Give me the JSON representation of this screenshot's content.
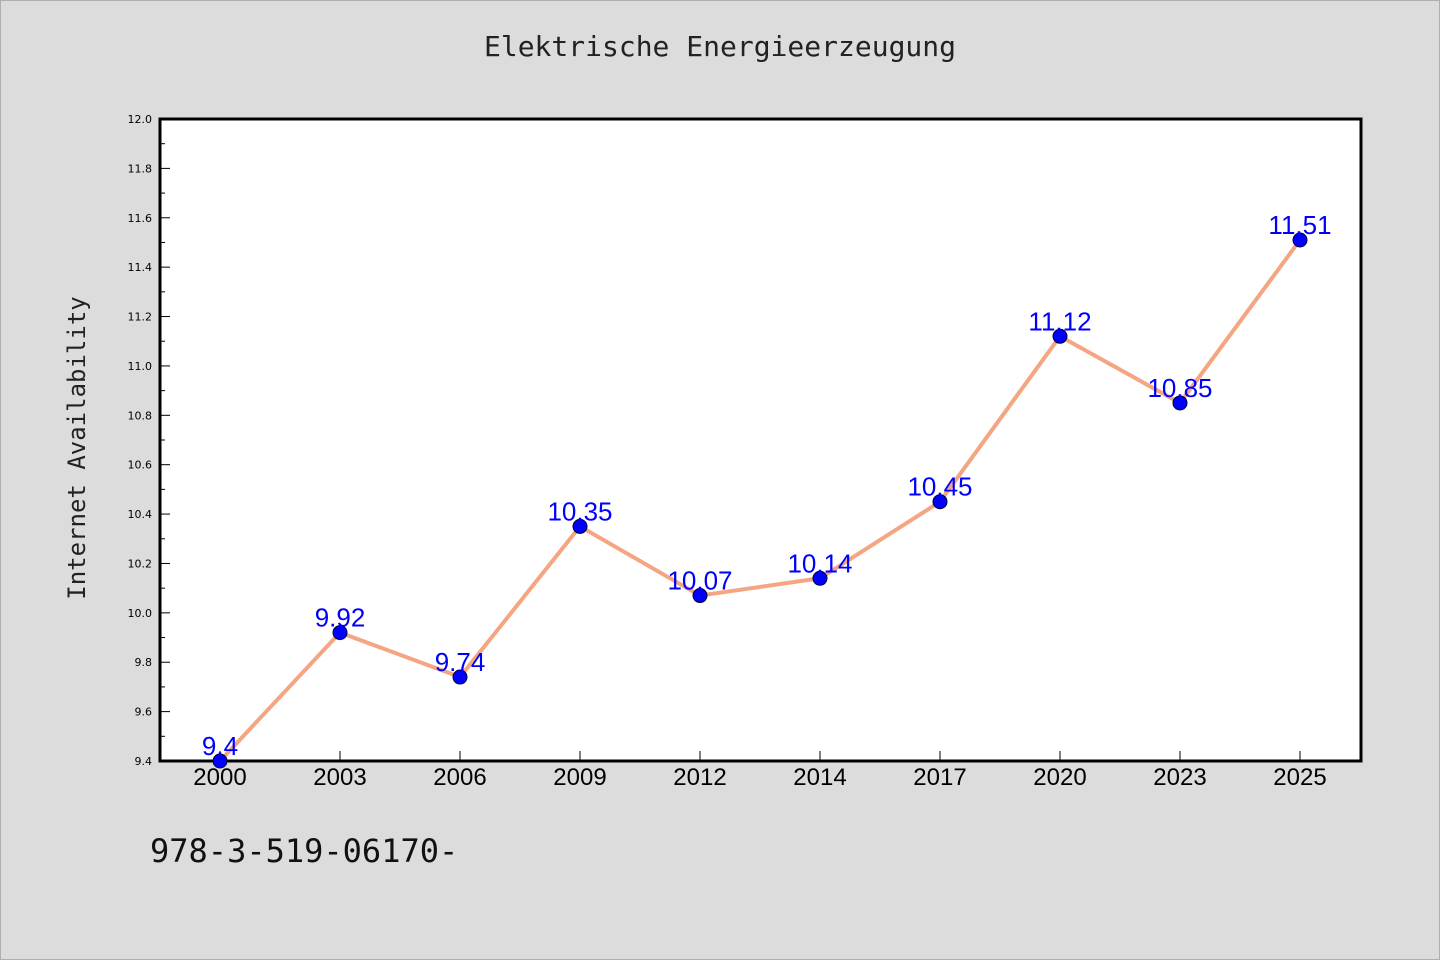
{
  "chart_data": {
    "type": "line",
    "title": "Elektrische Energieerzeugung",
    "xlabel": "",
    "ylabel": "Internet Availability",
    "categories": [
      "2000",
      "2003",
      "2006",
      "2009",
      "2012",
      "2014",
      "2017",
      "2020",
      "2023",
      "2025"
    ],
    "series": [
      {
        "values": [
          9.4,
          9.92,
          9.74,
          10.35,
          10.07,
          10.14,
          10.45,
          11.12,
          10.85,
          11.51
        ],
        "line_color": "#f4a582",
        "marker_color": "#0000ff"
      }
    ],
    "data_labels": [
      "9.4",
      "9.92",
      "9.74",
      "10.35",
      "10.07",
      "10.14",
      "10.45",
      "11.12",
      "10.85",
      "11.51"
    ],
    "data_label_color": "#0000ff",
    "ylim": [
      9.4,
      12.0
    ],
    "yticks": [
      "9.4",
      "9.6",
      "9.8",
      "10.0",
      "10.2",
      "10.4",
      "10.6",
      "10.8",
      "11.0",
      "11.2",
      "11.4",
      "11.6",
      "11.8",
      "12.0"
    ],
    "grid": false,
    "legend": "none"
  },
  "footnote": "978-3-519-06170-"
}
